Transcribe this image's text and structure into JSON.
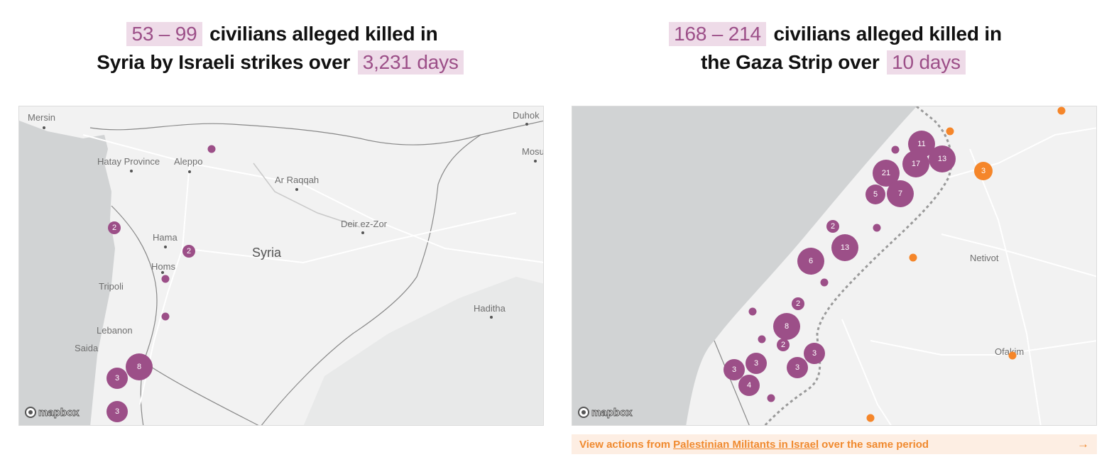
{
  "left_panel": {
    "headline": {
      "range": "53 – 99",
      "text_1": "civilians alleged killed in",
      "text_2": "Syria by Israeli strikes over",
      "duration": "3,231 days"
    },
    "map": {
      "places": [
        "Mersin",
        "Hatay Province",
        "Aleppo",
        "Ar Raqqah",
        "Deir ez-Zor",
        "Hama",
        "Syria",
        "Homs",
        "Tripoli",
        "Lebanon",
        "Saida",
        "Haditha",
        "Duhok",
        "Mosu"
      ],
      "bubbles": [
        "2",
        "2",
        "8",
        "3",
        "3"
      ],
      "logo": "mapbox"
    }
  },
  "right_panel": {
    "headline": {
      "range": "168 – 214",
      "text_1": "civilians alleged killed in",
      "text_2": "the Gaza Strip over",
      "duration": "10 days"
    },
    "map": {
      "places": [
        "Netivot",
        "Ofakim"
      ],
      "bubbles": [
        "11",
        "13",
        "17",
        "21",
        "5",
        "7",
        "3",
        "2",
        "13",
        "6",
        "2",
        "8",
        "2",
        "3",
        "3",
        "3",
        "4"
      ],
      "logo": "mapbox"
    },
    "footer": {
      "prefix": "View actions from",
      "link": "Palestinian Militants in Israel",
      "suffix": "over the same period",
      "arrow": "→"
    }
  },
  "colors": {
    "highlight_bg": "#eedbe8",
    "highlight_text": "#9c4f88",
    "bubble_purple": "#9c4f88",
    "bubble_orange": "#f5862a",
    "footer_bg": "#fdeee3",
    "footer_text": "#f08a2f"
  }
}
